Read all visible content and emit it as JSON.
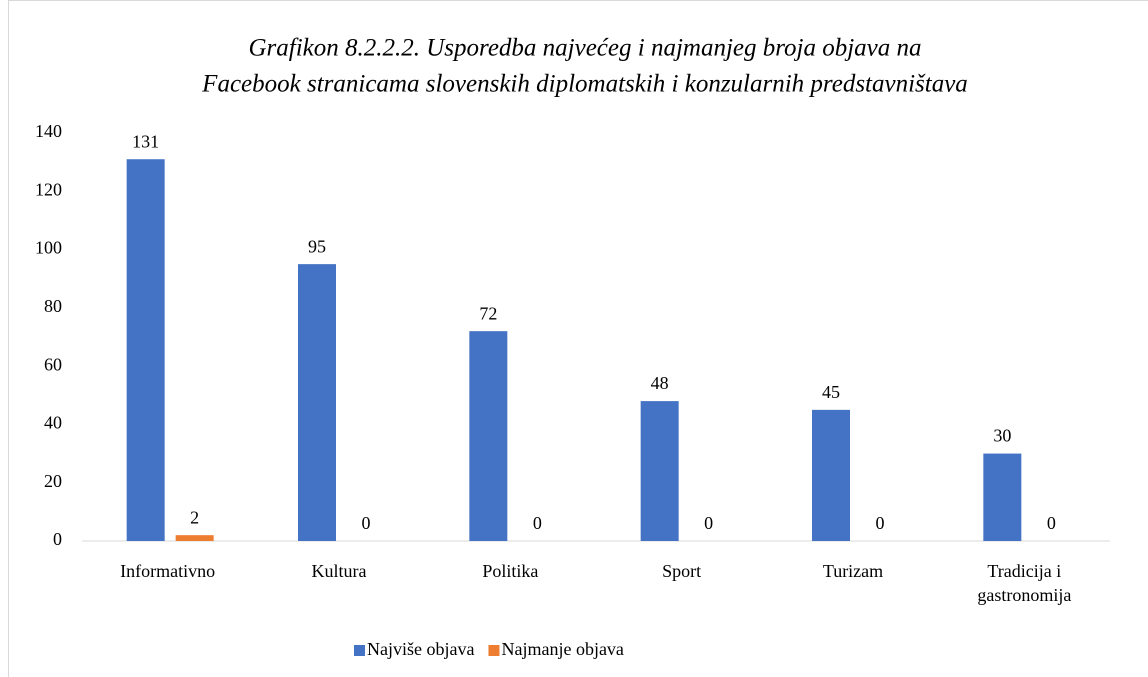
{
  "chart_data": {
    "type": "bar",
    "title": [
      "Grafikon 8.2.2.2. Usporedba najvećeg i najmanjeg broja objava na",
      "Facebook stranicama slovenskih diplomatskih i konzularnih predstavništava"
    ],
    "categories": [
      "Informativno",
      "Kultura",
      "Politika",
      "Sport",
      "Turizam",
      "Tradicija i gastronomija"
    ],
    "series": [
      {
        "name": "Najviše objava",
        "color": "#4472c4",
        "values": [
          131,
          95,
          72,
          48,
          45,
          30
        ]
      },
      {
        "name": "Najmanje objava",
        "color": "#ed7d31",
        "values": [
          2,
          0,
          0,
          0,
          0,
          0
        ]
      }
    ],
    "ylim": [
      0,
      140
    ],
    "yticks": [
      0,
      20,
      40,
      60,
      80,
      100,
      120,
      140
    ],
    "grid": false,
    "data_labels": true,
    "legend": "bottom"
  }
}
